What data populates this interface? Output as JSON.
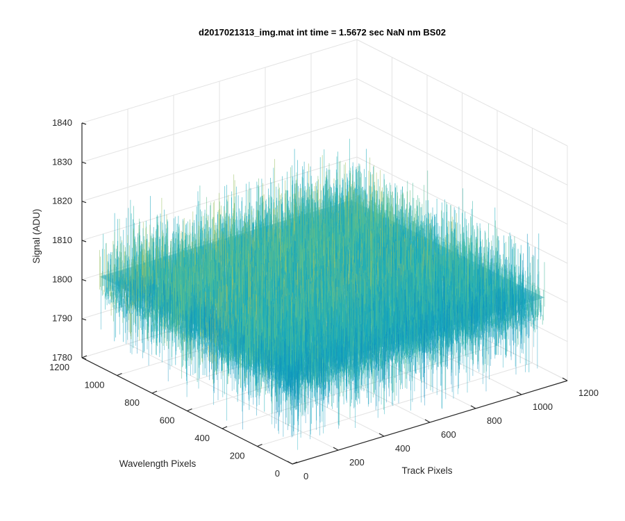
{
  "chart_data": {
    "type": "surface",
    "title": "d2017021313_img.mat int time = 1.5672 sec  NaN nm BS02",
    "xlabel": "Track Pixels",
    "ylabel": "Wavelength Pixels",
    "zlabel": "Signal (ADU)",
    "x_ticks": [
      "0",
      "200",
      "400",
      "600",
      "800",
      "1000",
      "1200"
    ],
    "y_ticks": [
      "0",
      "200",
      "400",
      "600",
      "800",
      "1000",
      "1200"
    ],
    "z_ticks": [
      "1780",
      "1790",
      "1800",
      "1810",
      "1820",
      "1830",
      "1840"
    ],
    "xlim": [
      0,
      1200
    ],
    "ylim": [
      0,
      1200
    ],
    "zlim": [
      1780,
      1840
    ],
    "surface": {
      "x_extent": [
        0,
        1100
      ],
      "y_extent": [
        0,
        1100
      ],
      "mean_signal": 1803,
      "noise_min": 1787,
      "noise_max": 1833,
      "colormap": "parula"
    },
    "grid": true,
    "colors": {
      "low": "#0072bd",
      "mid": "#1fb5b5",
      "high": "#d9c33a",
      "grid": "#e3e3e3",
      "axis": "#262626"
    }
  }
}
